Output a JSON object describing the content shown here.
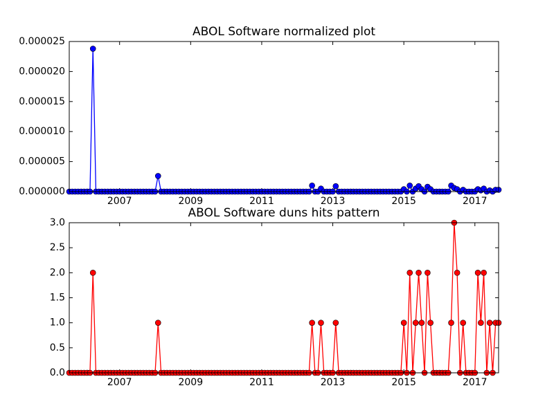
{
  "chart_data": [
    {
      "type": "line",
      "title": "ABOL Software normalized plot",
      "color": "#0000ff",
      "x": [
        2005.583,
        2005.667,
        2005.75,
        2005.833,
        2005.917,
        2006,
        2006.083,
        2006.167,
        2006.25,
        2006.333,
        2006.417,
        2006.5,
        2006.583,
        2006.667,
        2006.75,
        2006.833,
        2006.917,
        2007,
        2007.083,
        2007.167,
        2007.25,
        2007.333,
        2007.417,
        2007.5,
        2007.583,
        2007.667,
        2007.75,
        2007.833,
        2007.917,
        2008,
        2008.083,
        2008.167,
        2008.25,
        2008.333,
        2008.417,
        2008.5,
        2008.583,
        2008.667,
        2008.75,
        2008.833,
        2008.917,
        2009,
        2009.083,
        2009.167,
        2009.25,
        2009.333,
        2009.417,
        2009.5,
        2009.583,
        2009.667,
        2009.75,
        2009.833,
        2009.917,
        2010,
        2010.083,
        2010.167,
        2010.25,
        2010.333,
        2010.417,
        2010.5,
        2010.583,
        2010.667,
        2010.75,
        2010.833,
        2010.917,
        2011,
        2011.083,
        2011.167,
        2011.25,
        2011.333,
        2011.417,
        2011.5,
        2011.583,
        2011.667,
        2011.75,
        2011.833,
        2011.917,
        2012,
        2012.083,
        2012.167,
        2012.25,
        2012.333,
        2012.417,
        2012.5,
        2012.583,
        2012.667,
        2012.75,
        2012.833,
        2012.917,
        2013,
        2013.083,
        2013.167,
        2013.25,
        2013.333,
        2013.417,
        2013.5,
        2013.583,
        2013.667,
        2013.75,
        2013.833,
        2013.917,
        2014,
        2014.083,
        2014.167,
        2014.25,
        2014.333,
        2014.417,
        2014.5,
        2014.583,
        2014.667,
        2014.75,
        2014.833,
        2014.917,
        2015,
        2015.083,
        2015.167,
        2015.25,
        2015.333,
        2015.417,
        2015.5,
        2015.583,
        2015.667,
        2015.75,
        2015.833,
        2015.917,
        2016,
        2016.083,
        2016.167,
        2016.25,
        2016.333,
        2016.417,
        2016.5,
        2016.583,
        2016.667,
        2016.75,
        2016.833,
        2016.917,
        2017,
        2017.083,
        2017.167,
        2017.25,
        2017.333,
        2017.417,
        2017.5,
        2017.583,
        2017.667
      ],
      "values": [
        0,
        0,
        0,
        0,
        0,
        0,
        0,
        0,
        2.38e-05,
        0,
        0,
        0,
        0,
        0,
        0,
        0,
        0,
        0,
        0,
        0,
        0,
        0,
        0,
        0,
        0,
        0,
        0,
        0,
        0,
        0,
        2.6e-06,
        0,
        0,
        0,
        0,
        0,
        0,
        0,
        0,
        0,
        0,
        0,
        0,
        0,
        0,
        0,
        0,
        0,
        0,
        0,
        0,
        0,
        0,
        0,
        0,
        0,
        0,
        0,
        0,
        0,
        0,
        0,
        0,
        0,
        0,
        0,
        0,
        0,
        0,
        0,
        0,
        0,
        0,
        0,
        0,
        0,
        0,
        0,
        0,
        0,
        0,
        0,
        1e-06,
        0,
        0,
        5e-07,
        0,
        0,
        0,
        0,
        9e-07,
        0,
        0,
        0,
        0,
        0,
        0,
        0,
        0,
        0,
        0,
        0,
        0,
        0,
        0,
        0,
        0,
        0,
        0,
        0,
        0,
        0,
        0,
        4e-07,
        0,
        1e-06,
        0,
        5e-07,
        9e-07,
        4e-07,
        0,
        8e-07,
        4e-07,
        0,
        0,
        0,
        0,
        0,
        0,
        1e-06,
        6e-07,
        4e-07,
        0,
        3e-07,
        0,
        0,
        0,
        0,
        4e-07,
        2e-07,
        5e-07,
        0,
        2e-07,
        0,
        3e-07,
        3e-07
      ],
      "xlim": [
        2005.583,
        2017.667
      ],
      "xticks": [
        2007,
        2009,
        2011,
        2013,
        2015,
        2017
      ],
      "ylim": [
        0,
        2.5e-05
      ],
      "yticks": [
        {
          "value": 0,
          "label": "0.000000"
        },
        {
          "value": 5e-06,
          "label": "0.000005"
        },
        {
          "value": 1e-05,
          "label": "0.000010"
        },
        {
          "value": 1.5e-05,
          "label": "0.000015"
        },
        {
          "value": 2e-05,
          "label": "0.000020"
        },
        {
          "value": 2.5e-05,
          "label": "0.000025"
        }
      ]
    },
    {
      "type": "line",
      "title": "ABOL Software duns hits pattern",
      "color": "#ff0000",
      "x": [
        2005.583,
        2005.667,
        2005.75,
        2005.833,
        2005.917,
        2006,
        2006.083,
        2006.167,
        2006.25,
        2006.333,
        2006.417,
        2006.5,
        2006.583,
        2006.667,
        2006.75,
        2006.833,
        2006.917,
        2007,
        2007.083,
        2007.167,
        2007.25,
        2007.333,
        2007.417,
        2007.5,
        2007.583,
        2007.667,
        2007.75,
        2007.833,
        2007.917,
        2008,
        2008.083,
        2008.167,
        2008.25,
        2008.333,
        2008.417,
        2008.5,
        2008.583,
        2008.667,
        2008.75,
        2008.833,
        2008.917,
        2009,
        2009.083,
        2009.167,
        2009.25,
        2009.333,
        2009.417,
        2009.5,
        2009.583,
        2009.667,
        2009.75,
        2009.833,
        2009.917,
        2010,
        2010.083,
        2010.167,
        2010.25,
        2010.333,
        2010.417,
        2010.5,
        2010.583,
        2010.667,
        2010.75,
        2010.833,
        2010.917,
        2011,
        2011.083,
        2011.167,
        2011.25,
        2011.333,
        2011.417,
        2011.5,
        2011.583,
        2011.667,
        2011.75,
        2011.833,
        2011.917,
        2012,
        2012.083,
        2012.167,
        2012.25,
        2012.333,
        2012.417,
        2012.5,
        2012.583,
        2012.667,
        2012.75,
        2012.833,
        2012.917,
        2013,
        2013.083,
        2013.167,
        2013.25,
        2013.333,
        2013.417,
        2013.5,
        2013.583,
        2013.667,
        2013.75,
        2013.833,
        2013.917,
        2014,
        2014.083,
        2014.167,
        2014.25,
        2014.333,
        2014.417,
        2014.5,
        2014.583,
        2014.667,
        2014.75,
        2014.833,
        2014.917,
        2015,
        2015.083,
        2015.167,
        2015.25,
        2015.333,
        2015.417,
        2015.5,
        2015.583,
        2015.667,
        2015.75,
        2015.833,
        2015.917,
        2016,
        2016.083,
        2016.167,
        2016.25,
        2016.333,
        2016.417,
        2016.5,
        2016.583,
        2016.667,
        2016.75,
        2016.833,
        2016.917,
        2017,
        2017.083,
        2017.167,
        2017.25,
        2017.333,
        2017.417,
        2017.5,
        2017.583,
        2017.667
      ],
      "values": [
        0,
        0,
        0,
        0,
        0,
        0,
        0,
        0,
        2,
        0,
        0,
        0,
        0,
        0,
        0,
        0,
        0,
        0,
        0,
        0,
        0,
        0,
        0,
        0,
        0,
        0,
        0,
        0,
        0,
        0,
        1,
        0,
        0,
        0,
        0,
        0,
        0,
        0,
        0,
        0,
        0,
        0,
        0,
        0,
        0,
        0,
        0,
        0,
        0,
        0,
        0,
        0,
        0,
        0,
        0,
        0,
        0,
        0,
        0,
        0,
        0,
        0,
        0,
        0,
        0,
        0,
        0,
        0,
        0,
        0,
        0,
        0,
        0,
        0,
        0,
        0,
        0,
        0,
        0,
        0,
        0,
        0,
        1,
        0,
        0,
        1,
        0,
        0,
        0,
        0,
        1,
        0,
        0,
        0,
        0,
        0,
        0,
        0,
        0,
        0,
        0,
        0,
        0,
        0,
        0,
        0,
        0,
        0,
        0,
        0,
        0,
        0,
        0,
        1,
        0,
        2,
        0,
        1,
        2,
        1,
        0,
        2,
        1,
        0,
        0,
        0,
        0,
        0,
        0,
        1,
        3,
        2,
        0,
        1,
        0,
        0,
        0,
        0,
        2,
        1,
        2,
        0,
        1,
        0,
        1,
        1
      ],
      "xlim": [
        2005.583,
        2017.667
      ],
      "xticks": [
        2007,
        2009,
        2011,
        2013,
        2015,
        2017
      ],
      "ylim": [
        0,
        3
      ],
      "yticks": [
        {
          "value": 0,
          "label": "0.0"
        },
        {
          "value": 0.5,
          "label": "0.5"
        },
        {
          "value": 1,
          "label": "1.0"
        },
        {
          "value": 1.5,
          "label": "1.5"
        },
        {
          "value": 2,
          "label": "2.0"
        },
        {
          "value": 2.5,
          "label": "2.5"
        },
        {
          "value": 3,
          "label": "3.0"
        }
      ]
    }
  ]
}
